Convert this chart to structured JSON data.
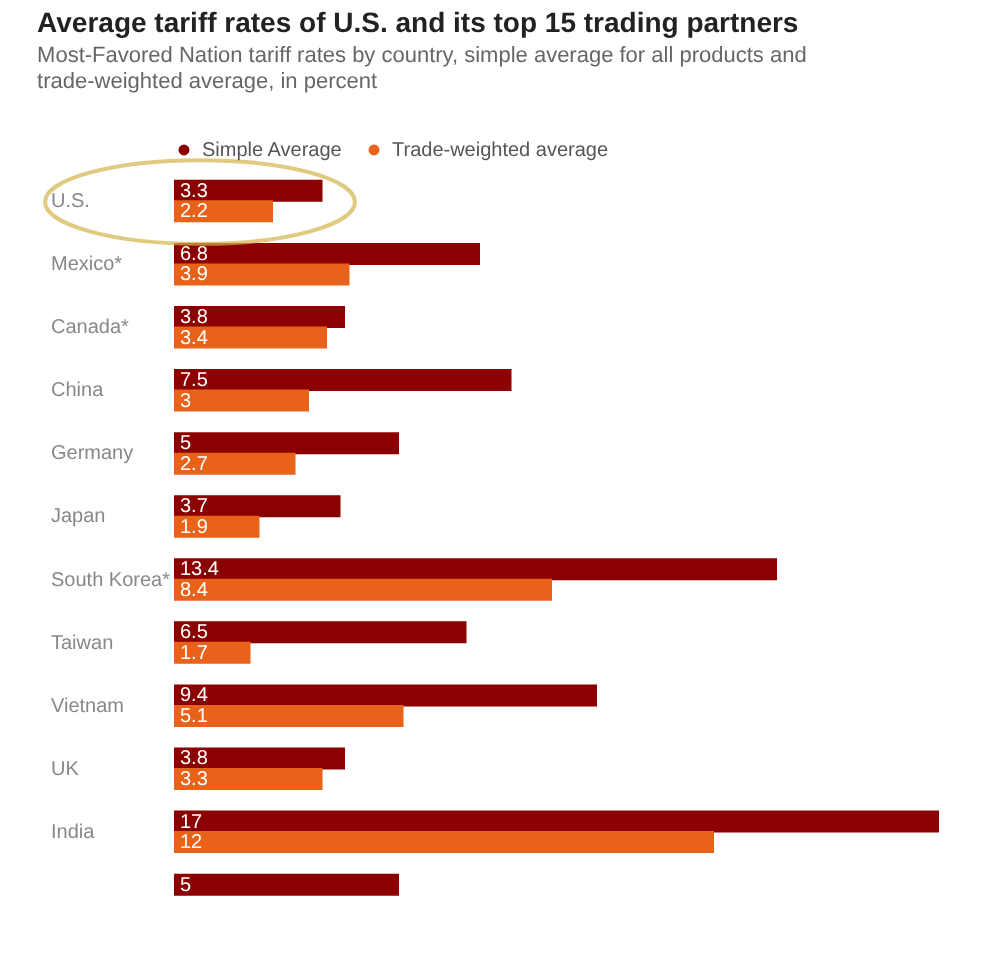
{
  "chart_data": {
    "type": "bar",
    "orientation": "horizontal",
    "title": "Average tariff rates of U.S. and its top 15 trading partners",
    "subtitle": "Most-Favored Nation tariff rates by country, simple average for all products and trade-weighted average, in percent",
    "categories": [
      "U.S.",
      "Mexico*",
      "Canada*",
      "China",
      "Germany",
      "Japan",
      "South Korea*",
      "Taiwan",
      "Vietnam",
      "UK",
      "India",
      null
    ],
    "series": [
      {
        "name": "Simple Average",
        "color": "#8b0000",
        "values": [
          3.3,
          6.8,
          3.8,
          7.5,
          5,
          3.7,
          13.4,
          6.5,
          9.4,
          3.8,
          17,
          5
        ]
      },
      {
        "name": "Trade-weighted average",
        "color": "#e8621a",
        "values": [
          2.2,
          3.9,
          3.4,
          3,
          2.7,
          1.9,
          8.4,
          1.7,
          5.1,
          3.3,
          12,
          null
        ]
      }
    ],
    "data_labels": true,
    "legend": "top left",
    "grid": false
  }
}
